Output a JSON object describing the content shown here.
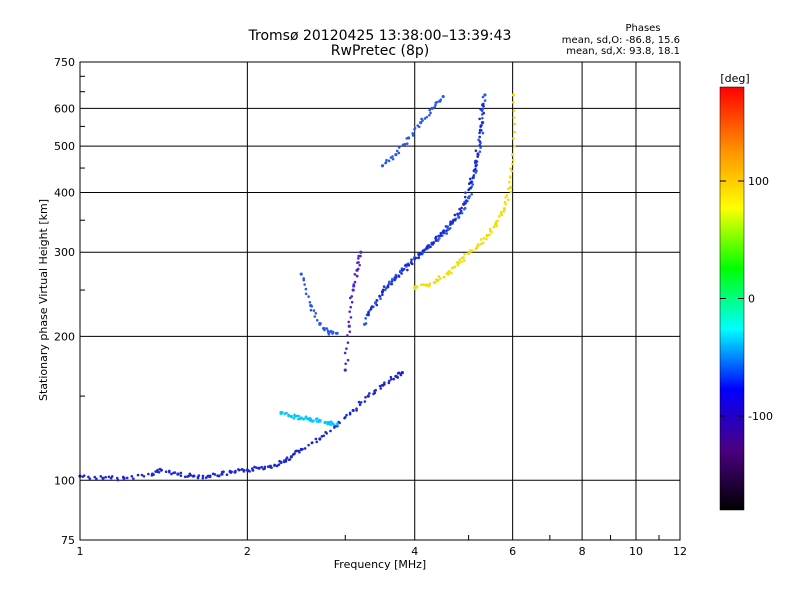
{
  "chart_data": {
    "type": "scatter",
    "title": "Tromsø 20120425 13:38:00–13:39:43",
    "subtitle": "RwPretec (8p)",
    "phases": {
      "header": "Phases",
      "line_o": "mean, sd,O: -86.8, 15.6",
      "line_x": "mean, sd,X:  93.8, 18.1"
    },
    "xlabel": "Frequency [MHz]",
    "ylabel": "Stationary phase Virtual Height [km]",
    "x_scale": "log",
    "y_scale": "log",
    "xlim": [
      1,
      12
    ],
    "ylim": [
      75,
      750
    ],
    "x_ticks": [
      1,
      2,
      4,
      6,
      8,
      10,
      12
    ],
    "x_tick_labels": [
      "1",
      "2",
      "4",
      "6",
      "8",
      "10",
      "12"
    ],
    "y_ticks": [
      75,
      100,
      200,
      300,
      400,
      500,
      600,
      750
    ],
    "y_tick_labels": [
      "75",
      "100",
      "200",
      "300",
      "400",
      "500",
      "600",
      "750"
    ],
    "grid": true,
    "colorbar": {
      "label": "[deg]",
      "range": [
        -180,
        180
      ],
      "ticks": [
        100,
        0,
        -100
      ],
      "tick_labels": [
        "100",
        "0",
        "-100"
      ],
      "colors": [
        "#ff0000",
        "#ff8c00",
        "#ffff00",
        "#00ff00",
        "#00ffff",
        "#0000ff",
        "#4b0082",
        "#000000"
      ]
    },
    "series": [
      {
        "color": "#1e28d2",
        "x": [
          1.0,
          1.1,
          1.2,
          1.35,
          1.4,
          1.5,
          1.6,
          1.7,
          1.8,
          1.9,
          2.0,
          2.1,
          2.2,
          2.3,
          2.4,
          2.5,
          2.7,
          2.9,
          3.1,
          3.3,
          3.5,
          3.7,
          3.8
        ],
        "y": [
          102,
          101,
          101,
          103,
          105,
          103,
          102,
          102,
          103,
          104,
          105,
          106,
          107,
          109,
          112,
          116,
          122,
          130,
          140,
          150,
          158,
          165,
          168
        ]
      },
      {
        "color": "#2a5ae6",
        "x": [
          2.5,
          2.6,
          2.7,
          2.8,
          2.9
        ],
        "y": [
          270,
          232,
          212,
          204,
          203
        ]
      },
      {
        "color": "#2a5ae6",
        "x": [
          3.25,
          3.4,
          3.6,
          3.8,
          4.0,
          4.2,
          4.4,
          4.6,
          4.8,
          5.0,
          5.1,
          5.2,
          5.3,
          5.35
        ],
        "y": [
          212,
          235,
          258,
          275,
          292,
          305,
          318,
          335,
          355,
          390,
          430,
          480,
          560,
          640
        ]
      },
      {
        "color": "#1e28d2",
        "x": [
          3.3,
          3.5,
          3.7,
          3.9,
          4.1,
          4.3,
          4.5,
          4.7,
          4.9,
          5.05,
          5.15,
          5.25,
          5.3
        ],
        "y": [
          222,
          248,
          266,
          282,
          298,
          312,
          330,
          350,
          378,
          420,
          465,
          540,
          610
        ]
      },
      {
        "color": "#5028c8",
        "x": [
          3.0,
          3.05,
          3.1,
          3.15,
          3.2
        ],
        "y": [
          170,
          210,
          250,
          275,
          300
        ]
      },
      {
        "color": "#2a5ae6",
        "x": [
          3.5,
          3.7,
          3.9,
          4.1,
          4.3,
          4.5
        ],
        "y": [
          455,
          480,
          520,
          560,
          600,
          635
        ]
      },
      {
        "color": "#f0e000",
        "x": [
          4.0,
          4.2,
          4.4,
          4.6,
          4.8,
          5.0,
          5.2,
          5.4,
          5.6,
          5.8,
          5.95,
          6.0,
          6.02
        ],
        "y": [
          252,
          256,
          262,
          272,
          285,
          298,
          310,
          325,
          345,
          370,
          410,
          480,
          640
        ]
      },
      {
        "color": "#00c8ff",
        "x": [
          2.3,
          2.4,
          2.5,
          2.6,
          2.7,
          2.8,
          2.9
        ],
        "y": [
          138,
          136,
          135,
          134,
          133,
          132,
          131
        ]
      }
    ]
  }
}
